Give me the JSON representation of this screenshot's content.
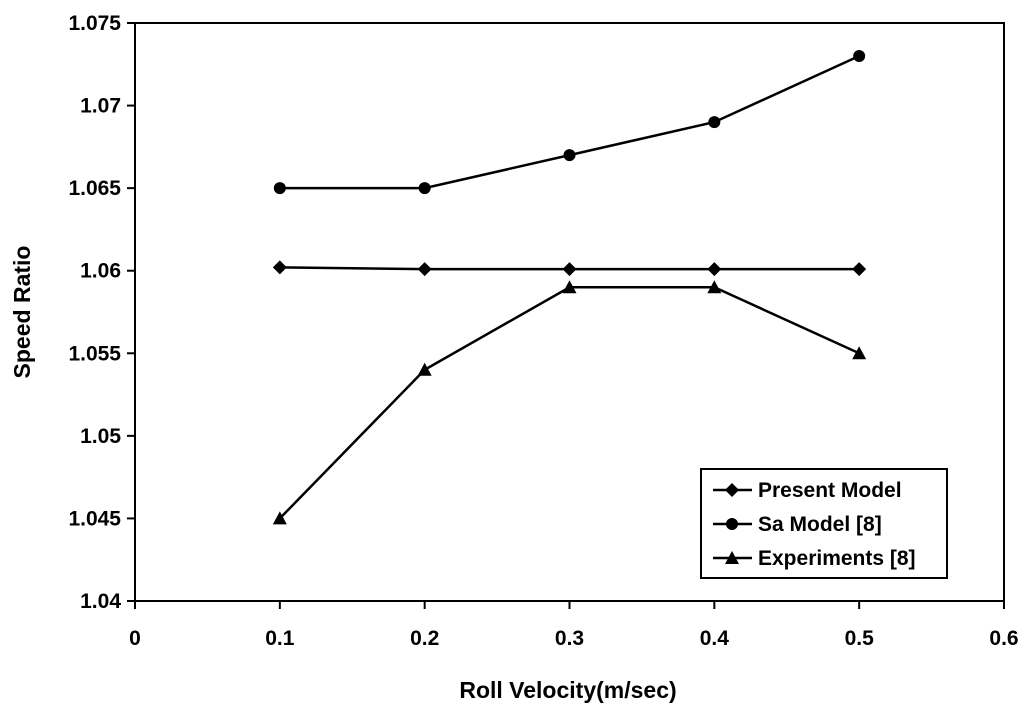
{
  "chart_data": {
    "type": "line",
    "title": "",
    "xlabel": "Roll Velocity(m/sec)",
    "ylabel": "Speed Ratio",
    "xlim": [
      0,
      0.6
    ],
    "ylim": [
      1.04,
      1.075
    ],
    "x_ticks": [
      0,
      0.1,
      0.2,
      0.3,
      0.4,
      0.5,
      0.6
    ],
    "x_tick_labels": [
      "0",
      "0.1",
      "0.2",
      "0.3",
      "0.4",
      "0.5",
      "0.6"
    ],
    "y_ticks": [
      1.04,
      1.045,
      1.05,
      1.055,
      1.06,
      1.065,
      1.07,
      1.075
    ],
    "y_tick_labels": [
      "1.04",
      "1.045",
      "1.05",
      "1.055",
      "1.06",
      "1.065",
      "1.07",
      "1.075"
    ],
    "grid": false,
    "legend_position": "bottom-right",
    "series": [
      {
        "name": "Present Model",
        "marker": "diamond",
        "color": "#000000",
        "x": [
          0.1,
          0.2,
          0.3,
          0.4,
          0.5
        ],
        "y": [
          1.0602,
          1.0601,
          1.0601,
          1.0601,
          1.0601
        ]
      },
      {
        "name": "Sa Model [8]",
        "marker": "circle",
        "color": "#000000",
        "x": [
          0.1,
          0.2,
          0.3,
          0.4,
          0.5
        ],
        "y": [
          1.065,
          1.065,
          1.067,
          1.069,
          1.073
        ]
      },
      {
        "name": "Experiments [8]",
        "marker": "triangle",
        "color": "#000000",
        "x": [
          0.1,
          0.2,
          0.3,
          0.4,
          0.5
        ],
        "y": [
          1.045,
          1.054,
          1.059,
          1.059,
          1.055
        ]
      }
    ]
  }
}
